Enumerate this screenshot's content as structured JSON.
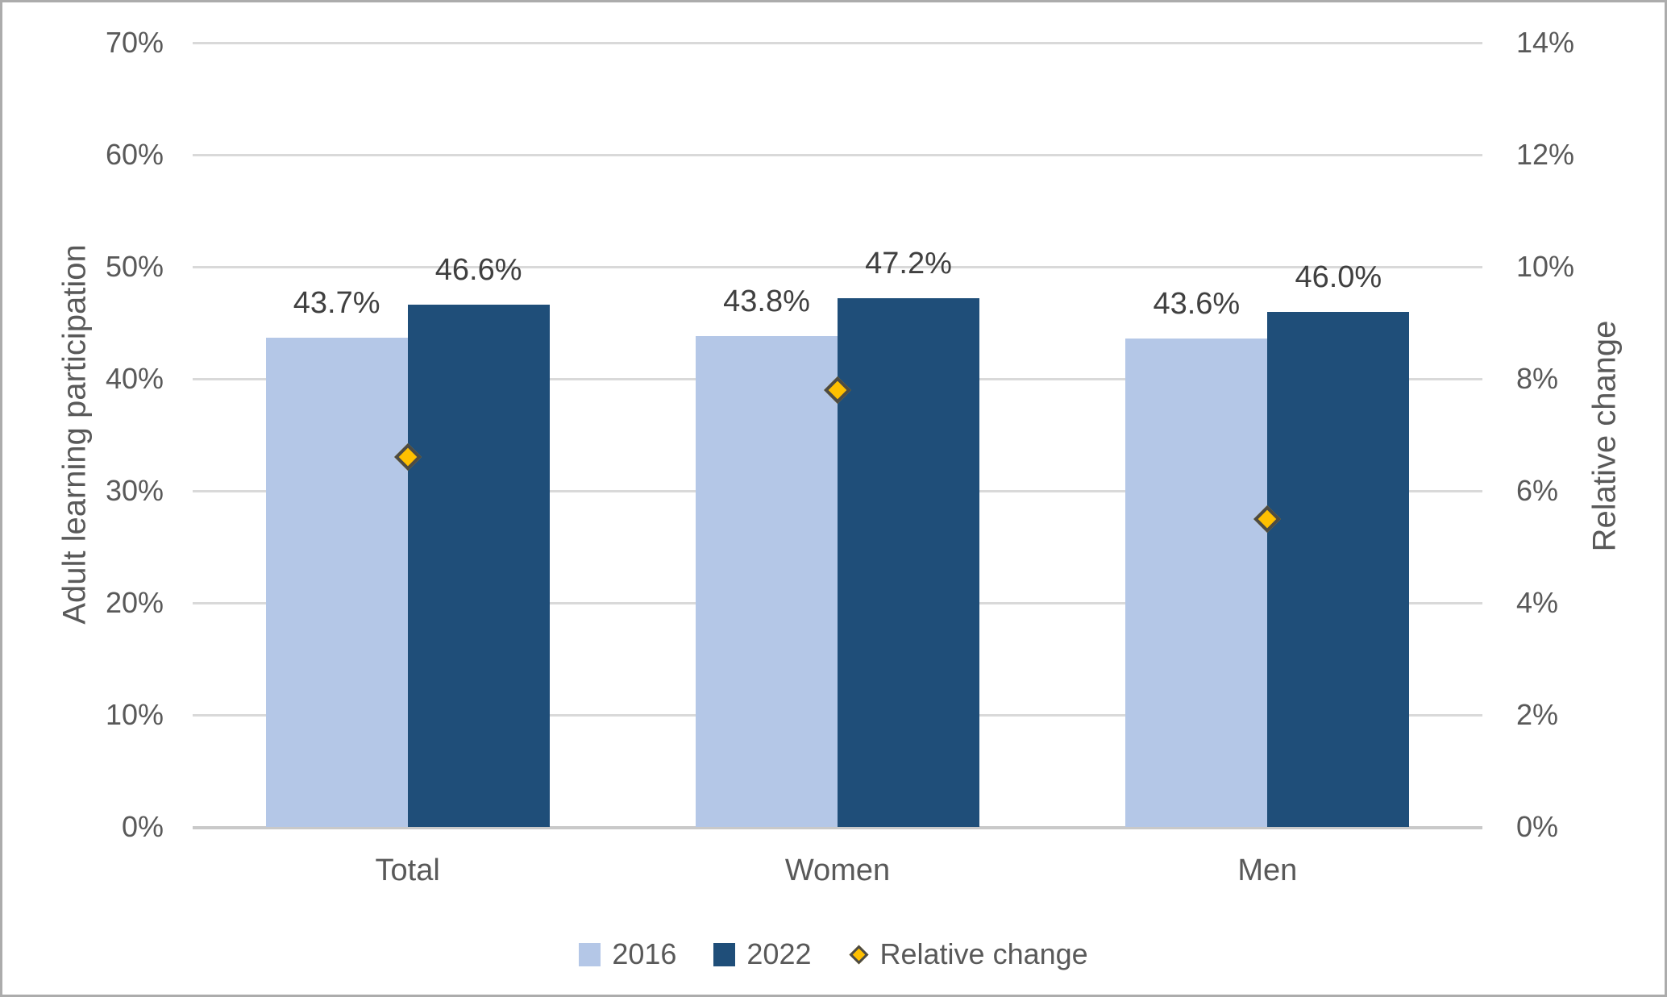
{
  "chart_data": {
    "type": "bar",
    "title": "",
    "categories": [
      "Total",
      "Women",
      "Men"
    ],
    "series": [
      {
        "name": "2016",
        "kind": "bar",
        "axis": "left",
        "color": "#B4C7E7",
        "values": [
          43.7,
          43.8,
          43.6
        ],
        "data_labels": [
          "43.7%",
          "43.8%",
          "43.6%"
        ]
      },
      {
        "name": "2022",
        "kind": "bar",
        "axis": "left",
        "color": "#1F4E79",
        "values": [
          46.6,
          47.2,
          46.0
        ],
        "data_labels": [
          "46.6%",
          "47.2%",
          "46.0%"
        ]
      },
      {
        "name": "Relative change",
        "kind": "marker",
        "marker": "diamond",
        "axis": "right",
        "color": "#FFC000",
        "border_color": "#4D4B44",
        "values": [
          6.6,
          7.8,
          5.5
        ]
      }
    ],
    "left_axis": {
      "title": "Adult learning participation",
      "min": 0,
      "max": 70,
      "step": 10,
      "tick_labels": [
        "70%",
        "60%",
        "50%",
        "40%",
        "30%",
        "20%",
        "10%",
        "0%"
      ]
    },
    "right_axis": {
      "title": "Relative change",
      "min": 0,
      "max": 14,
      "step": 2,
      "tick_labels": [
        "14%",
        "12%",
        "10%",
        "8%",
        "6%",
        "4%",
        "2%",
        "0%"
      ]
    },
    "legend": {
      "position": "bottom",
      "entries": [
        "2016",
        "2022",
        "Relative change"
      ]
    },
    "grid": true
  },
  "styles": {
    "background": "#FFFFFF",
    "frame_border": "#ACACAC",
    "gridline": "#D9D9D9",
    "axis_line": "#C9C9C9",
    "tick_text": "#595959",
    "data_label_text": "#404040",
    "bar_2016": "#B4C7E7",
    "bar_2022": "#1F4E79",
    "marker_fill": "#FFC000",
    "marker_border": "#4D4B44"
  }
}
